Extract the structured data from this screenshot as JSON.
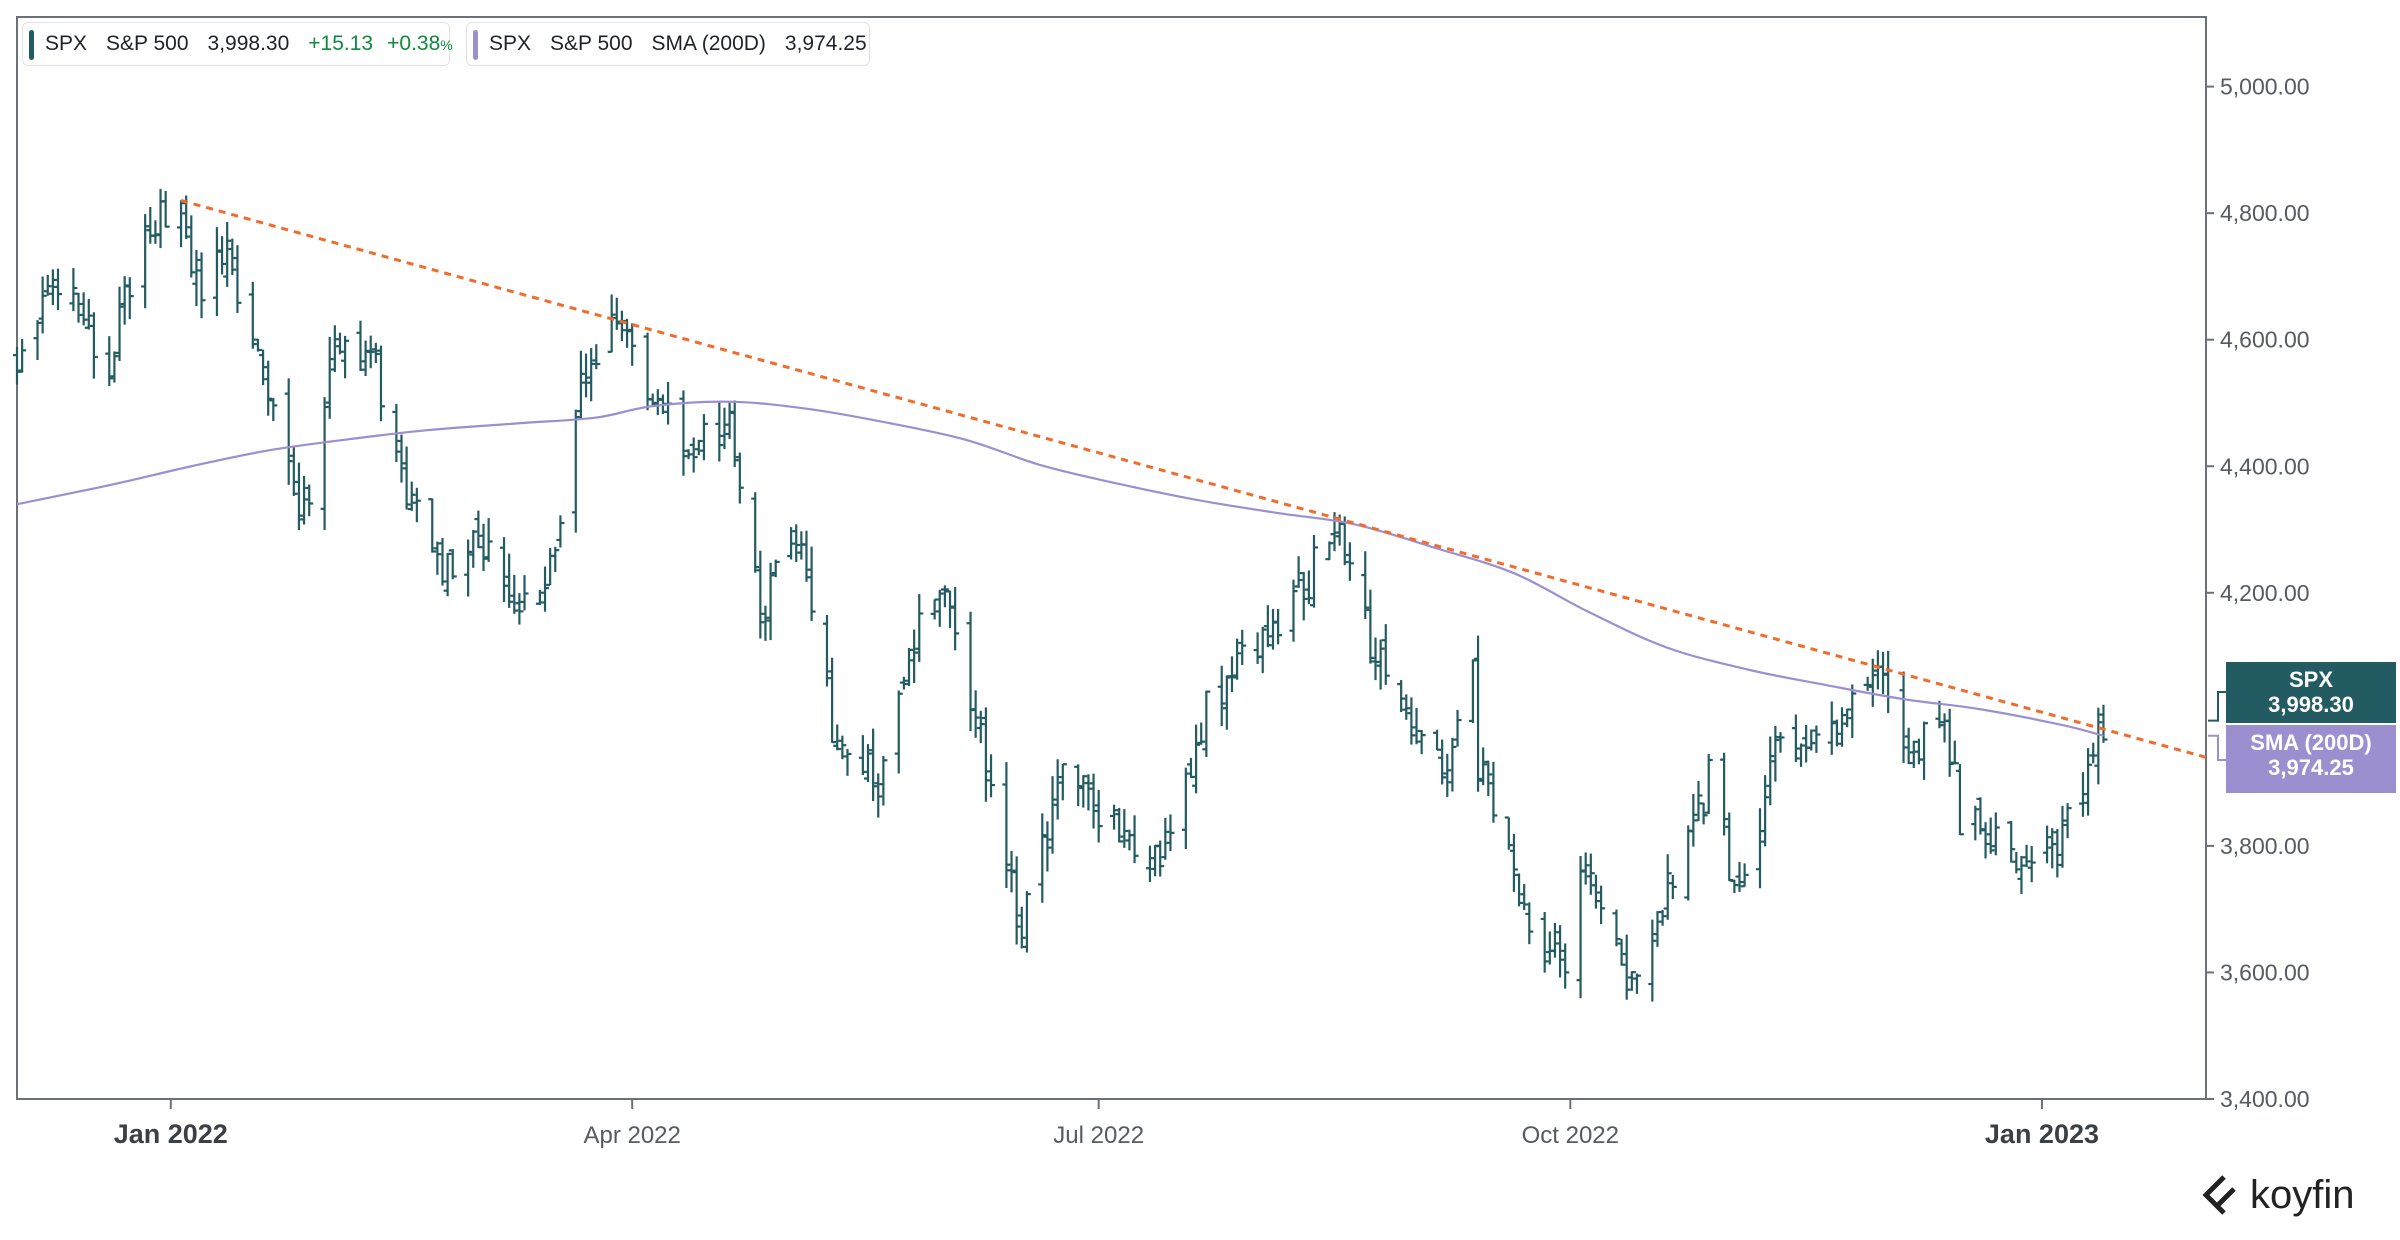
{
  "legend": [
    {
      "symbol": "SPX",
      "name": "S&P 500",
      "value": "3,998.30",
      "change": "+15.13",
      "change_pct": "+0.38",
      "pct_suffix": "%",
      "color": "#235b62"
    },
    {
      "symbol": "SPX",
      "name": "S&P 500",
      "indicator": "SMA (200D)",
      "value": "3,974.25",
      "color": "#9c8fcf"
    }
  ],
  "price_tags": {
    "spx": {
      "label": "SPX",
      "value": "3,998.30",
      "color": "#235b62"
    },
    "sma": {
      "label": "SMA (200D)",
      "value": "3,974.25",
      "color": "#9c8fcf"
    }
  },
  "brand": {
    "name": "koyfin",
    "icon": "koyfin-logo-icon"
  },
  "chart_data": {
    "type": "ohlc",
    "title": "",
    "xlabel": "",
    "ylabel": "",
    "ylim": [
      3400,
      5110
    ],
    "y_ticks": [
      "5,000.00",
      "4,800.00",
      "4,600.00",
      "4,400.00",
      "4,200.00",
      "3,800.00",
      "3,600.00",
      "3,400.00"
    ],
    "y_tick_values": [
      5000,
      4800,
      4600,
      4400,
      4200,
      3800,
      3600,
      3400
    ],
    "x_range": [
      "2021-12-02",
      "2023-02-02"
    ],
    "x_ticks": [
      {
        "date": "2022-01-01",
        "label": "Jan 2022",
        "bold": true
      },
      {
        "date": "2022-04-01",
        "label": "Apr 2022",
        "bold": false
      },
      {
        "date": "2022-07-01",
        "label": "Jul 2022",
        "bold": false
      },
      {
        "date": "2022-10-01",
        "label": "Oct 2022",
        "bold": false
      },
      {
        "date": "2023-01-01",
        "label": "Jan 2023",
        "bold": true
      }
    ],
    "grid": false,
    "series": [
      {
        "name": "S&P 500",
        "kind": "ohlc",
        "color": "#235b62",
        "anchors": [
          [
            "2021-12-02",
            4580
          ],
          [
            "2021-12-08",
            4700
          ],
          [
            "2021-12-14",
            4640
          ],
          [
            "2021-12-20",
            4570
          ],
          [
            "2021-12-27",
            4790
          ],
          [
            "2022-01-03",
            4796
          ],
          [
            "2022-01-07",
            4677
          ],
          [
            "2022-01-12",
            4726
          ],
          [
            "2022-01-18",
            4577
          ],
          [
            "2022-01-24",
            4410
          ],
          [
            "2022-01-27",
            4326
          ],
          [
            "2022-02-02",
            4589
          ],
          [
            "2022-02-09",
            4587
          ],
          [
            "2022-02-14",
            4401
          ],
          [
            "2022-02-23",
            4225
          ],
          [
            "2022-03-01",
            4306
          ],
          [
            "2022-03-08",
            4170
          ],
          [
            "2022-03-14",
            4173
          ],
          [
            "2022-03-22",
            4512
          ],
          [
            "2022-03-29",
            4631
          ],
          [
            "2022-04-05",
            4525
          ],
          [
            "2022-04-11",
            4412
          ],
          [
            "2022-04-20",
            4459
          ],
          [
            "2022-04-26",
            4175
          ],
          [
            "2022-05-04",
            4300
          ],
          [
            "2022-05-11",
            3935
          ],
          [
            "2022-05-20",
            3901
          ],
          [
            "2022-05-27",
            4158
          ],
          [
            "2022-06-02",
            4177
          ],
          [
            "2022-06-10",
            3900
          ],
          [
            "2022-06-16",
            3667
          ],
          [
            "2022-06-24",
            3912
          ],
          [
            "2022-07-05",
            3831
          ],
          [
            "2022-07-14",
            3790
          ],
          [
            "2022-07-21",
            3999
          ],
          [
            "2022-08-01",
            4119
          ],
          [
            "2022-08-10",
            4210
          ],
          [
            "2022-08-16",
            4305
          ],
          [
            "2022-08-26",
            4057
          ],
          [
            "2022-09-06",
            3908
          ],
          [
            "2022-09-12",
            4110
          ],
          [
            "2022-09-13",
            3932
          ],
          [
            "2022-09-23",
            3693
          ],
          [
            "2022-09-30",
            3585
          ],
          [
            "2022-10-04",
            3791
          ],
          [
            "2022-10-12",
            3577
          ],
          [
            "2022-10-21",
            3752
          ],
          [
            "2022-10-28",
            3901
          ],
          [
            "2022-11-03",
            3719
          ],
          [
            "2022-11-10",
            3956
          ],
          [
            "2022-11-22",
            4003
          ],
          [
            "2022-12-01",
            4076
          ],
          [
            "2022-12-06",
            3941
          ],
          [
            "2022-12-13",
            4019
          ],
          [
            "2022-12-16",
            3852
          ],
          [
            "2022-12-28",
            3783
          ],
          [
            "2023-01-05",
            3808
          ],
          [
            "2023-01-12",
            3983
          ],
          [
            "2023-01-13",
            3998
          ]
        ]
      },
      {
        "name": "SMA (200D)",
        "kind": "line",
        "color": "#9c8fcf",
        "points": [
          [
            "2021-12-02",
            4340
          ],
          [
            "2021-12-20",
            4370
          ],
          [
            "2022-01-05",
            4400
          ],
          [
            "2022-01-20",
            4425
          ],
          [
            "2022-02-05",
            4443
          ],
          [
            "2022-02-20",
            4457
          ],
          [
            "2022-03-10",
            4468
          ],
          [
            "2022-03-25",
            4477
          ],
          [
            "2022-04-05",
            4495
          ],
          [
            "2022-04-20",
            4502
          ],
          [
            "2022-05-05",
            4491
          ],
          [
            "2022-05-20",
            4470
          ],
          [
            "2022-06-05",
            4442
          ],
          [
            "2022-06-20",
            4401
          ],
          [
            "2022-07-05",
            4372
          ],
          [
            "2022-07-20",
            4347
          ],
          [
            "2022-08-05",
            4326
          ],
          [
            "2022-08-20",
            4308
          ],
          [
            "2022-09-05",
            4270
          ],
          [
            "2022-09-20",
            4231
          ],
          [
            "2022-10-05",
            4168
          ],
          [
            "2022-10-20",
            4113
          ],
          [
            "2022-11-05",
            4078
          ],
          [
            "2022-11-20",
            4054
          ],
          [
            "2022-12-05",
            4032
          ],
          [
            "2022-12-20",
            4016
          ],
          [
            "2023-01-05",
            3991
          ],
          [
            "2023-01-13",
            3974
          ]
        ]
      }
    ],
    "trendline": {
      "kind": "dashed",
      "color": "#f26b2a",
      "from": [
        "2022-01-03",
        4820
      ],
      "to": [
        "2023-02-02",
        3940
      ]
    }
  }
}
